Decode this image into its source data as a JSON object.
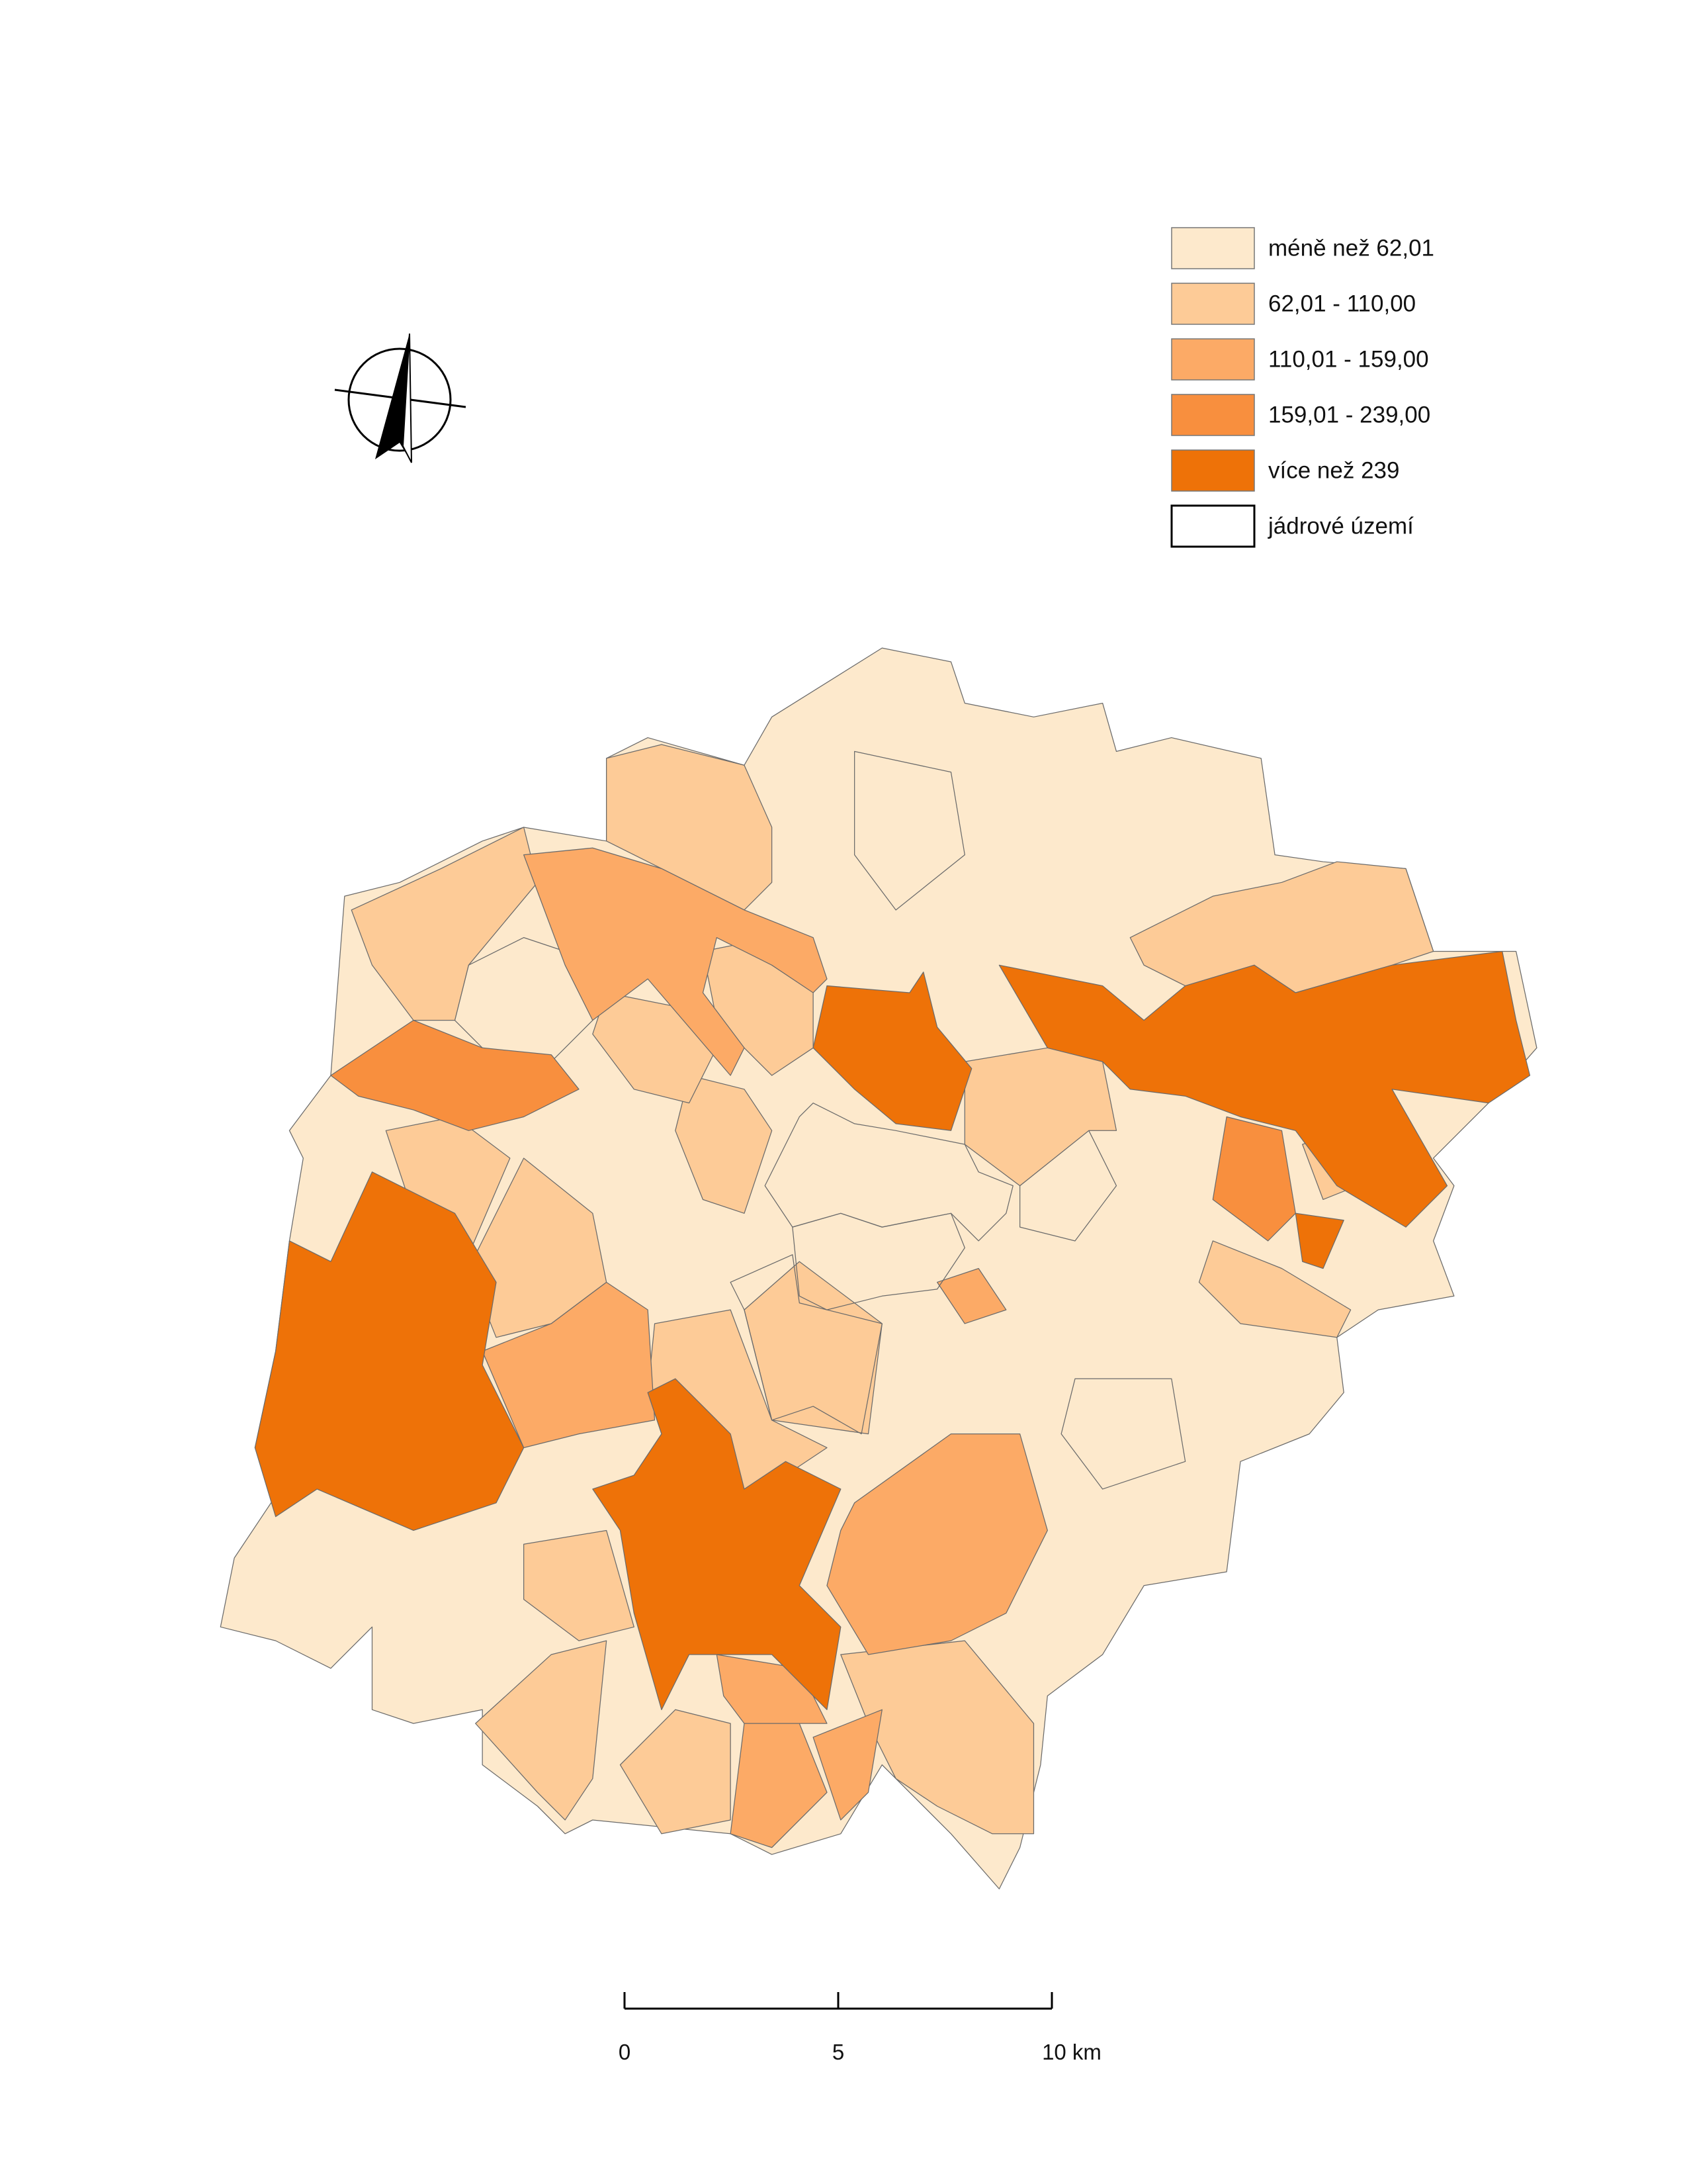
{
  "legend": {
    "items": [
      {
        "label": "méně než 62,01",
        "color": "#fde9cc"
      },
      {
        "label": "62,01 - 110,00",
        "color": "#fdcb97"
      },
      {
        "label": "110,01 - 159,00",
        "color": "#fcaa66"
      },
      {
        "label": "159,01 - 239,00",
        "color": "#f88f3e"
      },
      {
        "label": "více než 239",
        "color": "#ee7208"
      },
      {
        "label": "jádrové území",
        "color": "#ffffff"
      }
    ]
  },
  "scale_bar": {
    "labels": [
      "0",
      "5",
      "10 km"
    ]
  }
}
